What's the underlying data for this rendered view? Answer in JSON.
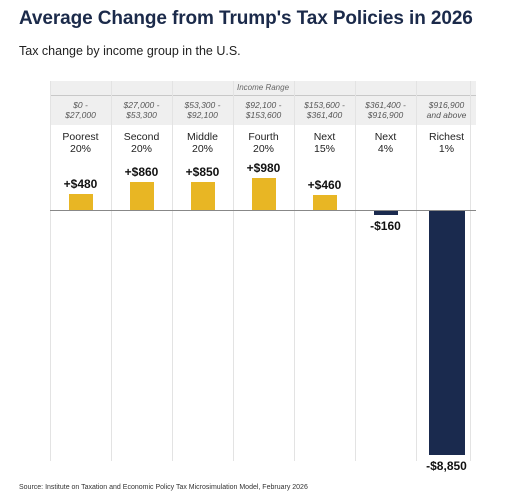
{
  "header": {
    "title": "Average Change from Trump's Tax Policies in 2026",
    "subtitle": "Tax change by income group in the U.S."
  },
  "income_range": {
    "title": "Income Range",
    "ranges": [
      [
        "$0 -",
        "$27,000"
      ],
      [
        "$27,000 -",
        "$53,300"
      ],
      [
        "$53,300 -",
        "$92,100"
      ],
      [
        "$92,100 -",
        "$153,600"
      ],
      [
        "$153,600 -",
        "$361,400"
      ],
      [
        "$361,400 -",
        "$916,900"
      ],
      [
        "$916,900",
        "and above"
      ]
    ]
  },
  "footer": {
    "source": "Source: Institute on Taxation and Economic Policy Tax Microsimulation Model, February 2026"
  },
  "colors": {
    "positive": "#e8b624",
    "negative": "#1a2a4e"
  },
  "chart_data": {
    "type": "bar",
    "categories": [
      [
        "Poorest",
        "20%"
      ],
      [
        "Second",
        "20%"
      ],
      [
        "Middle",
        "20%"
      ],
      [
        "Fourth",
        "20%"
      ],
      [
        "Next",
        "15%"
      ],
      [
        "Next",
        "4%"
      ],
      [
        "Richest",
        "1%"
      ]
    ],
    "values": [
      480,
      860,
      850,
      980,
      460,
      -160,
      -8850
    ],
    "value_labels": [
      "+$480",
      "+$860",
      "+$850",
      "+$980",
      "+$460",
      "-$160",
      "-$8,850"
    ],
    "ylim": [
      -8850,
      980
    ],
    "grid": false,
    "legend": "none"
  }
}
